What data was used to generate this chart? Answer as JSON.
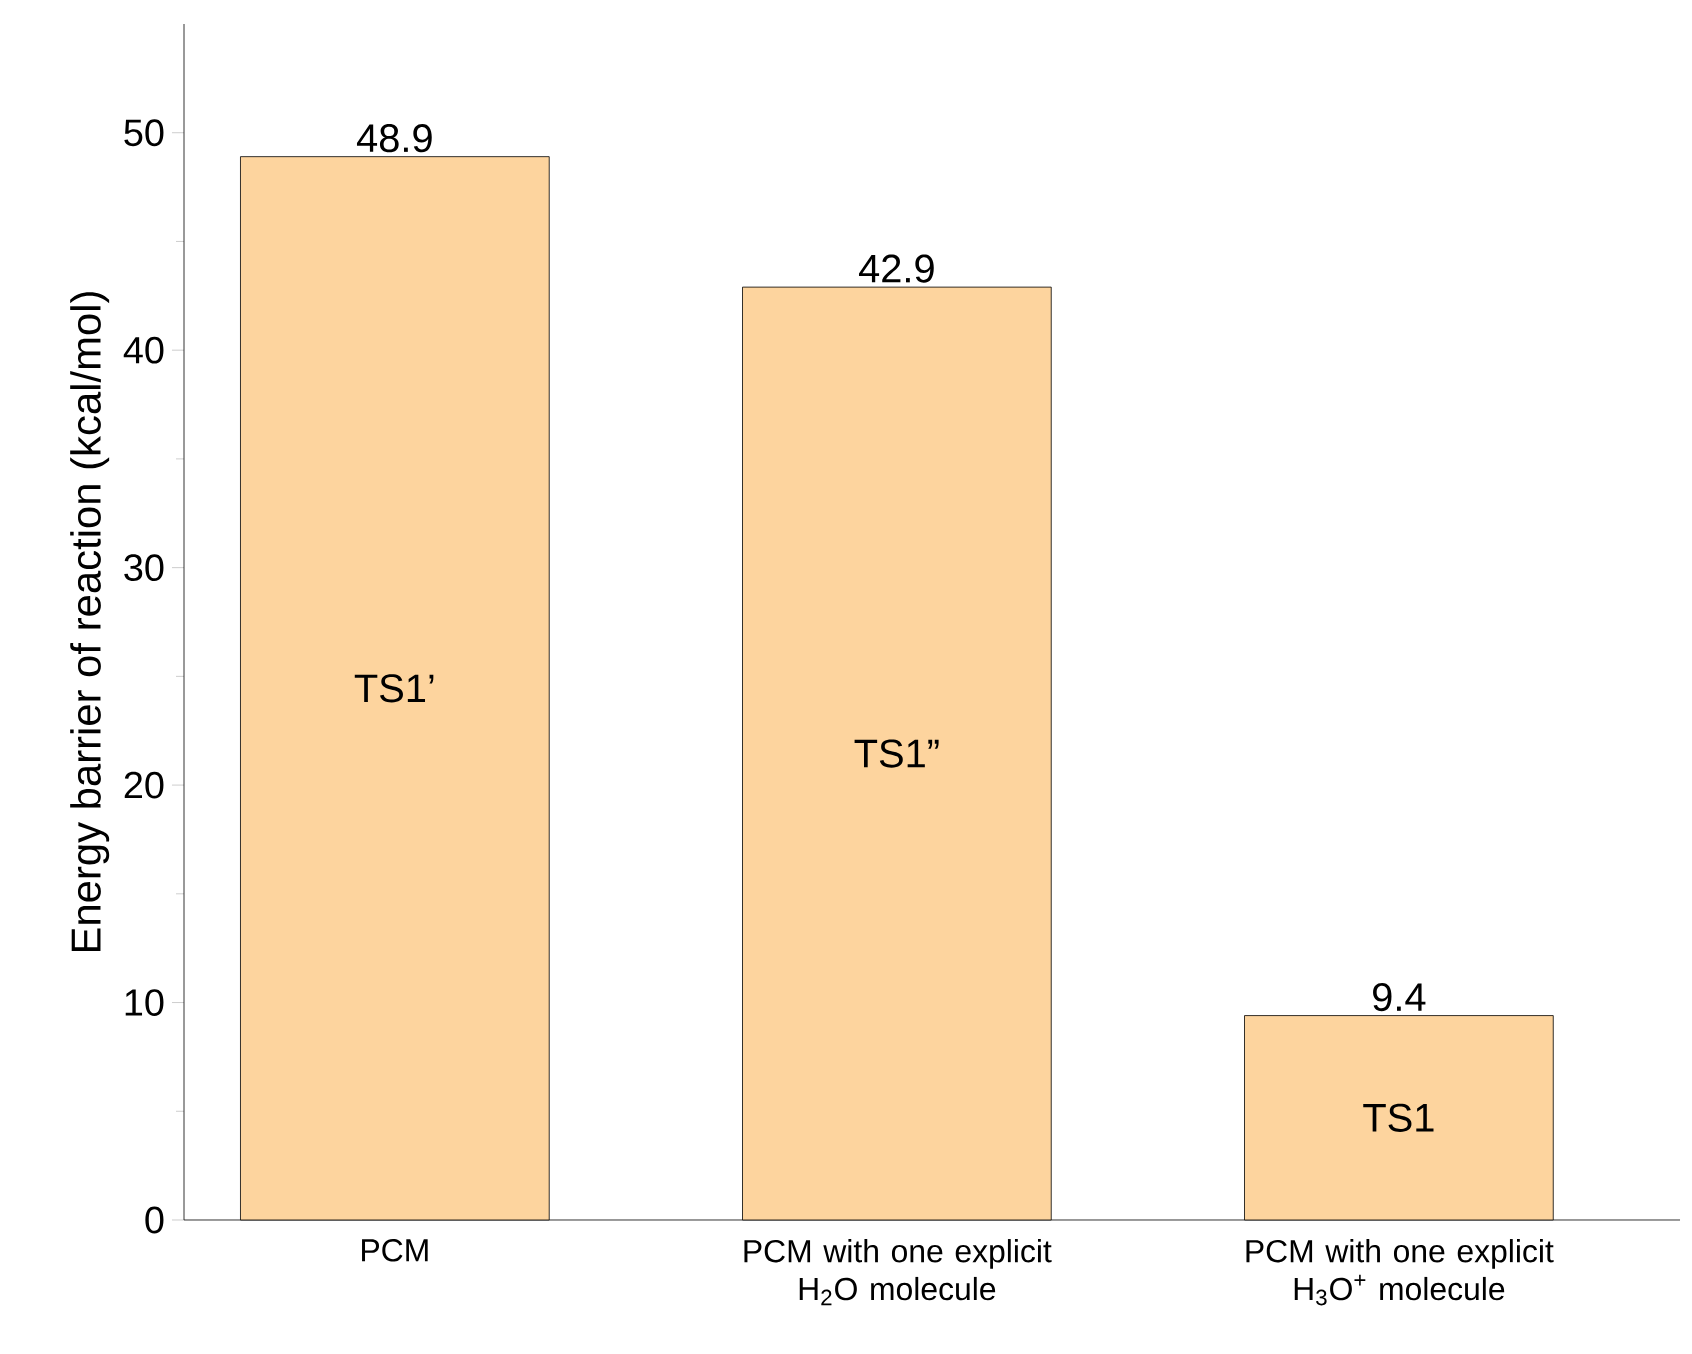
{
  "chart_data": {
    "type": "bar",
    "ylabel": "Energy barrier of reaction (kcal/mol)",
    "categories": [
      "PCM",
      "PCM with one explicit H$_{2}$O molecule",
      "PCM with one explicit H$_{3}$O$^{+}$ molecule"
    ],
    "values": [
      48.9,
      42.9,
      9.4
    ],
    "color": "#fdd49e",
    "data_labels": true,
    "ylim": [
      0,
      55
    ],
    "yticks": [
      0,
      10,
      20,
      30,
      40,
      50
    ],
    "grid": false,
    "annotations": [
      "TS1’",
      "TS1”",
      "TS1"
    ]
  }
}
